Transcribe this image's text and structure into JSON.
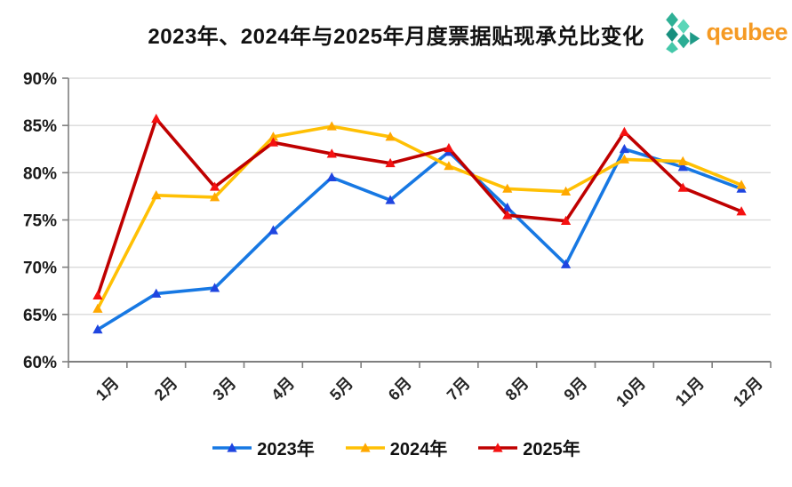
{
  "header": {
    "title": "2023年、2024年与2025年月度票据贴现承兑比变化",
    "logo": {
      "text": "qeubee",
      "text_color": "#F59A23",
      "icon": "hexagon-cluster-icon",
      "icon_colors": [
        "#2FB096",
        "#5BD6B8",
        "#188F7E",
        "#2BAD94",
        "#45C8AA",
        "#1F9A87"
      ]
    }
  },
  "chart_data": {
    "type": "line",
    "title": "2023年、2024年与2025年月度票据贴现承兑比变化",
    "categories": [
      "1月",
      "2月",
      "3月",
      "4月",
      "5月",
      "6月",
      "7月",
      "8月",
      "9月",
      "10月",
      "11月",
      "12月"
    ],
    "series": [
      {
        "name": "2023年",
        "line_color": "#1778E3",
        "marker_color": "#1F45E0",
        "values": [
          63.4,
          67.2,
          67.8,
          73.9,
          79.5,
          77.1,
          82.2,
          76.3,
          70.3,
          82.5,
          80.6,
          78.3
        ]
      },
      {
        "name": "2024年",
        "line_color": "#FFC004",
        "marker_color": "#FFA800",
        "values": [
          65.6,
          77.6,
          77.4,
          83.8,
          84.9,
          83.8,
          80.7,
          78.3,
          78.0,
          81.4,
          81.2,
          78.7
        ]
      },
      {
        "name": "2025年",
        "line_color": "#BF0000",
        "marker_color": "#F51111",
        "values": [
          67.0,
          85.7,
          78.5,
          83.2,
          82.0,
          81.0,
          82.6,
          75.5,
          74.9,
          84.3,
          78.4,
          75.9
        ]
      }
    ],
    "xlabel": "",
    "ylabel": "",
    "ylim": [
      60,
      90
    ],
    "ytick_step": 5,
    "ytick_suffix": "%",
    "grid": true,
    "legend_position": "bottom",
    "axis_color": "#7F7F7F",
    "grid_color": "#D9D9D9"
  }
}
